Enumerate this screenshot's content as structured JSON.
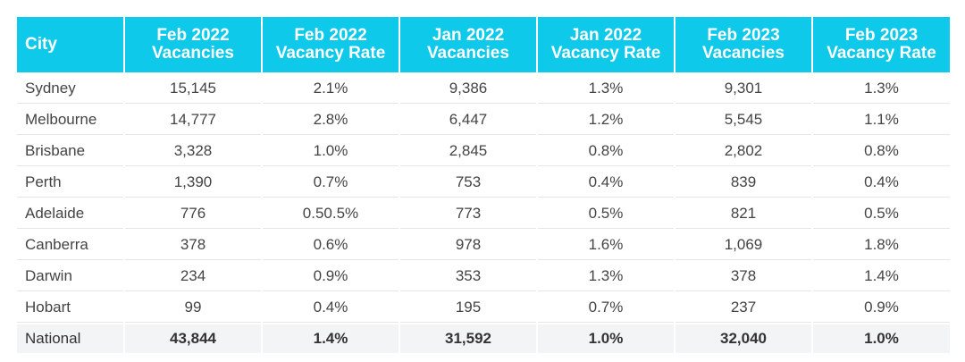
{
  "headers": [
    {
      "line1": "City",
      "line2": ""
    },
    {
      "line1": "Feb 2022",
      "line2": "Vacancies"
    },
    {
      "line1": "Feb 2022",
      "line2": "Vacancy Rate"
    },
    {
      "line1": "Jan 2022",
      "line2": "Vacancies"
    },
    {
      "line1": "Jan 2022",
      "line2": "Vacancy Rate"
    },
    {
      "line1": "Feb 2023",
      "line2": "Vacancies"
    },
    {
      "line1": "Feb 2023",
      "line2": "Vacancy Rate"
    }
  ],
  "rows": [
    [
      "Sydney",
      "15,145",
      "2.1%",
      "9,386",
      "1.3%",
      "9,301",
      "1.3%"
    ],
    [
      "Melbourne",
      "14,777",
      "2.8%",
      "6,447",
      "1.2%",
      "5,545",
      "1.1%"
    ],
    [
      "Brisbane",
      "3,328",
      "1.0%",
      "2,845",
      "0.8%",
      "2,802",
      "0.8%"
    ],
    [
      "Perth",
      "1,390",
      "0.7%",
      "753",
      "0.4%",
      "839",
      "0.4%"
    ],
    [
      "Adelaide",
      "776",
      "0.50.5%",
      "773",
      "0.5%",
      "821",
      "0.5%"
    ],
    [
      "Canberra",
      "378",
      "0.6%",
      "978",
      "1.6%",
      "1,069",
      "1.8%"
    ],
    [
      "Darwin",
      "234",
      "0.9%",
      "353",
      "1.3%",
      "378",
      "1.4%"
    ],
    [
      "Hobart",
      "99",
      "0.4%",
      "195",
      "0.7%",
      "237",
      "0.9%"
    ]
  ],
  "total": [
    "National",
    "43,844",
    "1.4%",
    "31,592",
    "1.0%",
    "32,040",
    "1.0%"
  ],
  "colors": {
    "header_bg": "#0ec9ea",
    "header_text": "#ffffff",
    "total_bg": "#f3f4f6",
    "body_text": "#444444"
  }
}
